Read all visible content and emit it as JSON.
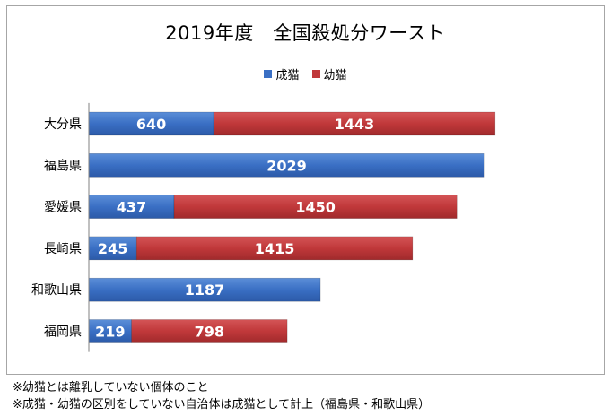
{
  "chart_data": {
    "type": "bar",
    "orientation": "horizontal",
    "stacked": true,
    "title": "2019年度　全国殺処分ワースト",
    "categories": [
      "大分県",
      "福島県",
      "愛媛県",
      "長崎県",
      "和歌山県",
      "福岡県"
    ],
    "series": [
      {
        "name": "成猫",
        "color": "#3a6fc4",
        "values": [
          640,
          2029,
          437,
          245,
          1187,
          219
        ]
      },
      {
        "name": "幼猫",
        "color": "#c0383a",
        "values": [
          1443,
          0,
          1450,
          1415,
          0,
          798
        ]
      }
    ],
    "xlim": [
      0,
      2300
    ],
    "legend_position": "top",
    "grid": false
  },
  "notes": [
    "※幼猫とは離乳していない個体のこと",
    "※成猫・幼猫の区別をしていない自治体は成猫として計上（福島県・和歌山県）"
  ]
}
